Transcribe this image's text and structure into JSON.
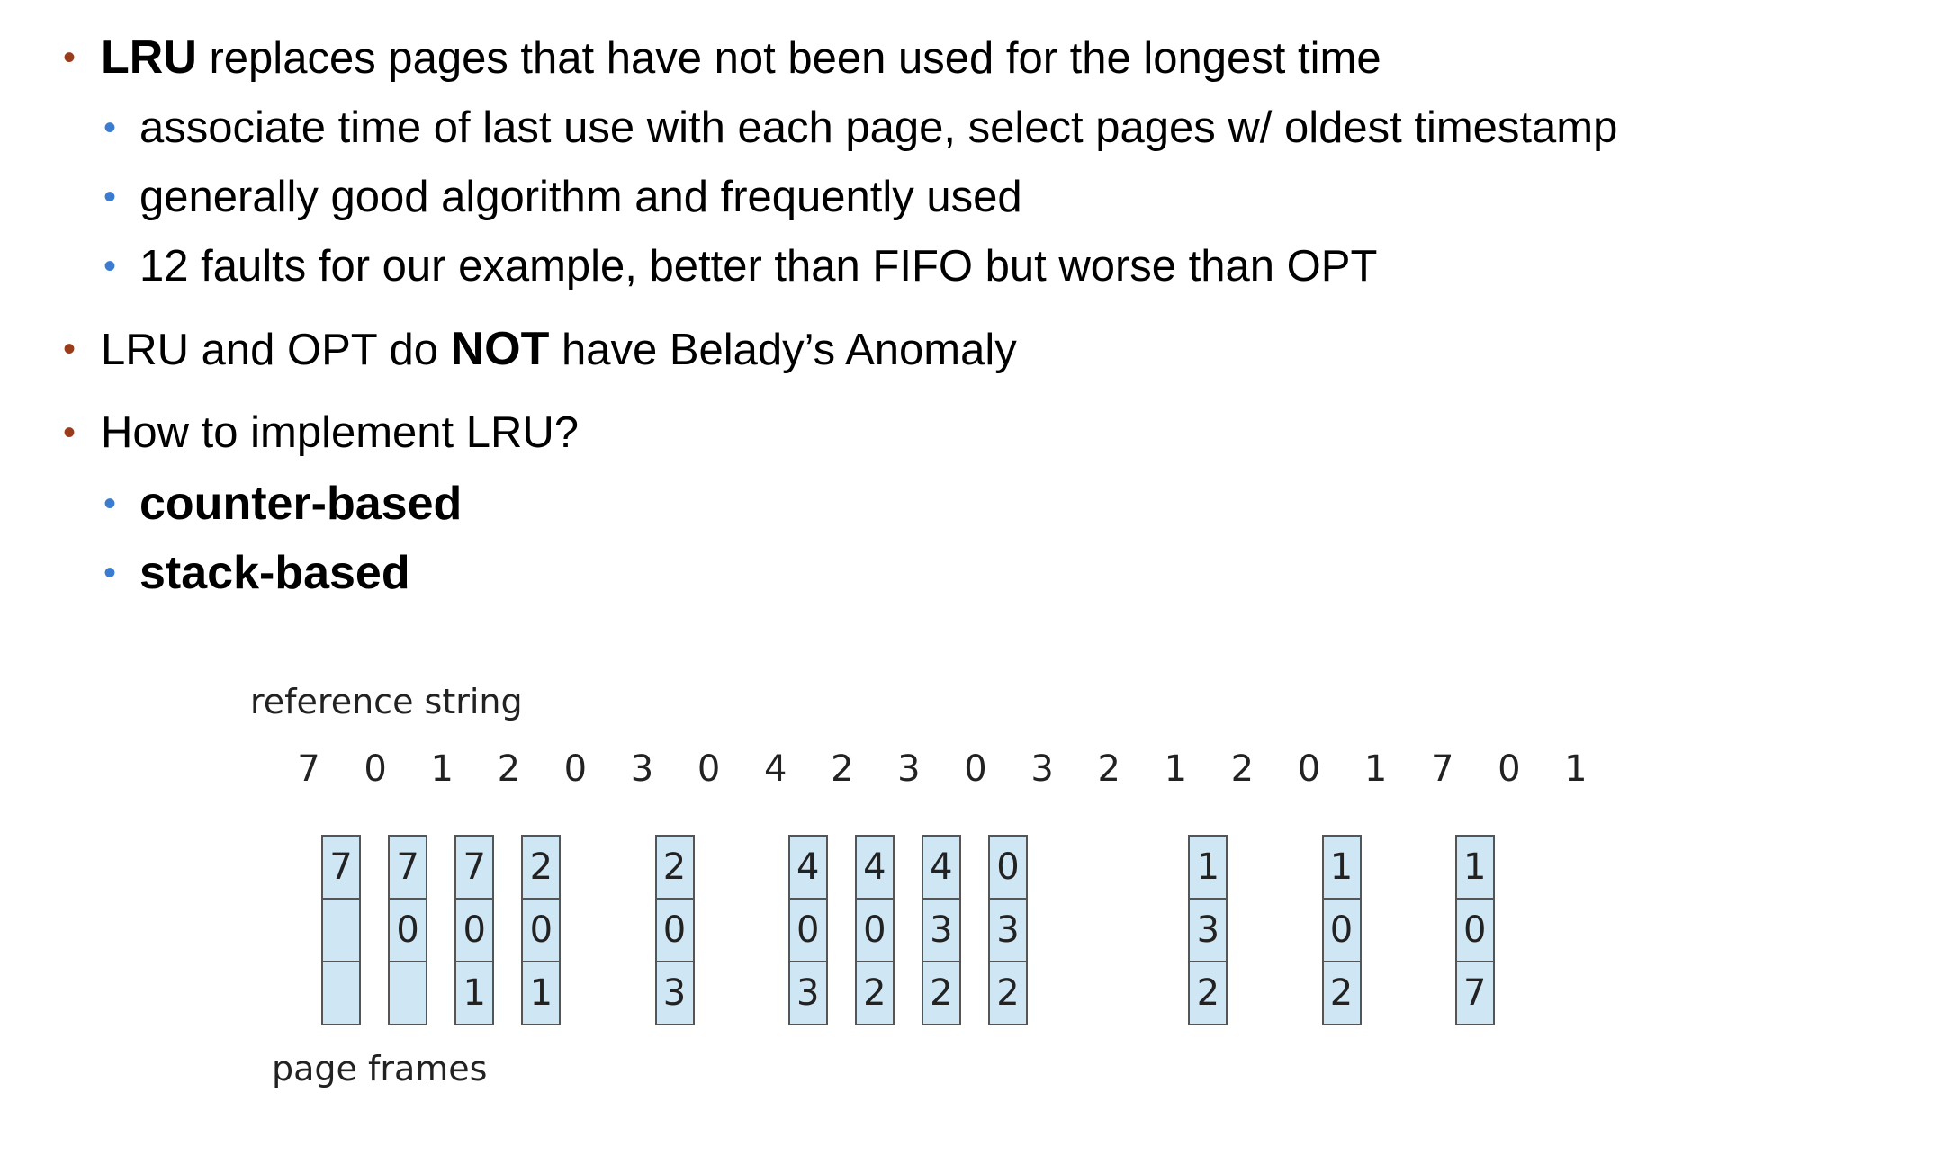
{
  "bullets": {
    "b1": {
      "strong": "LRU",
      "rest": " replaces pages that have not been used for the longest time"
    },
    "b1a": "associate time of last use with each page, select pages w/ oldest timestamp",
    "b1b": "generally good algorithm and frequently used",
    "b1c": "12 faults for our example, better than FIFO but worse than OPT",
    "b2": {
      "pre": "LRU and OPT do ",
      "strong": "NOT",
      "post": " have Belady’s Anomaly"
    },
    "b3": "How to implement LRU?",
    "b3a": "counter-based",
    "b3b": "stack-based"
  },
  "diagram": {
    "reference_label": "reference string",
    "frames_label": "page frames",
    "reference_string": [
      "7",
      "0",
      "1",
      "2",
      "0",
      "3",
      "0",
      "4",
      "2",
      "3",
      "0",
      "3",
      "2",
      "1",
      "2",
      "0",
      "1",
      "7",
      "0",
      "1"
    ],
    "frames": [
      {
        "step": 0,
        "values": [
          "7",
          "",
          ""
        ]
      },
      {
        "step": 1,
        "values": [
          "7",
          "0",
          ""
        ]
      },
      {
        "step": 2,
        "values": [
          "7",
          "0",
          "1"
        ]
      },
      {
        "step": 3,
        "values": [
          "2",
          "0",
          "1"
        ]
      },
      {
        "step": 5,
        "values": [
          "2",
          "0",
          "3"
        ]
      },
      {
        "step": 7,
        "values": [
          "4",
          "0",
          "3"
        ]
      },
      {
        "step": 8,
        "values": [
          "4",
          "0",
          "2"
        ]
      },
      {
        "step": 9,
        "values": [
          "4",
          "3",
          "2"
        ]
      },
      {
        "step": 10,
        "values": [
          "0",
          "3",
          "2"
        ]
      },
      {
        "step": 13,
        "values": [
          "1",
          "3",
          "2"
        ]
      },
      {
        "step": 15,
        "values": [
          "1",
          "0",
          "2"
        ]
      },
      {
        "step": 17,
        "values": [
          "1",
          "0",
          "7"
        ]
      }
    ],
    "colors": {
      "frame_fill": "#cfe6f5",
      "frame_border": "#555555"
    }
  }
}
